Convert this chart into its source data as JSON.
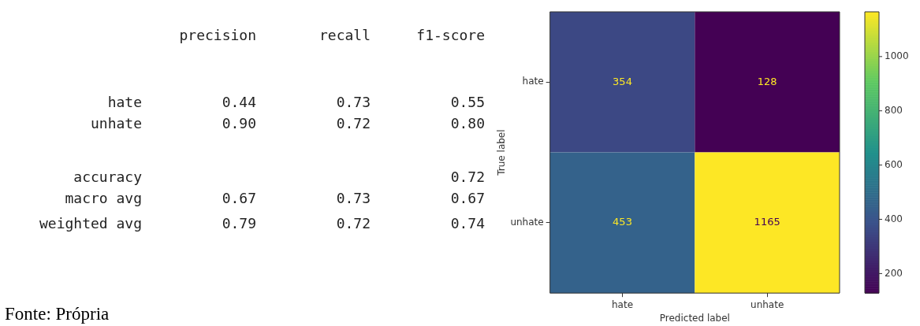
{
  "chart_data": [
    {
      "type": "other",
      "categories": [
        "precision",
        "recall",
        "f1-score"
      ],
      "y_categories": [
        "hate",
        "unhate",
        "accuracy",
        "macro avg",
        "weighted avg"
      ],
      "cell_labels": [
        [
          "0.44",
          "0.73",
          "0.55"
        ],
        [
          "0.90",
          "0.72",
          "0.80"
        ],
        [
          null,
          null,
          "0.72"
        ],
        [
          "0.67",
          "0.73",
          "0.67"
        ],
        [
          "0.79",
          "0.72",
          "0.74"
        ]
      ],
      "annotations": [
        "Fonte: Própria"
      ]
    },
    {
      "type": "heatmap",
      "categories": [
        "hate",
        "unhate"
      ],
      "y_categories": [
        "hate",
        "unhate"
      ],
      "cells": [
        [
          354,
          128
        ],
        [
          453,
          1165
        ]
      ],
      "data_labels": true,
      "xlabel": "Predicted label",
      "ylabel": "True label",
      "clim": [
        128,
        1165
      ],
      "cticks": [
        200,
        400,
        600,
        800,
        1000
      ]
    }
  ]
}
